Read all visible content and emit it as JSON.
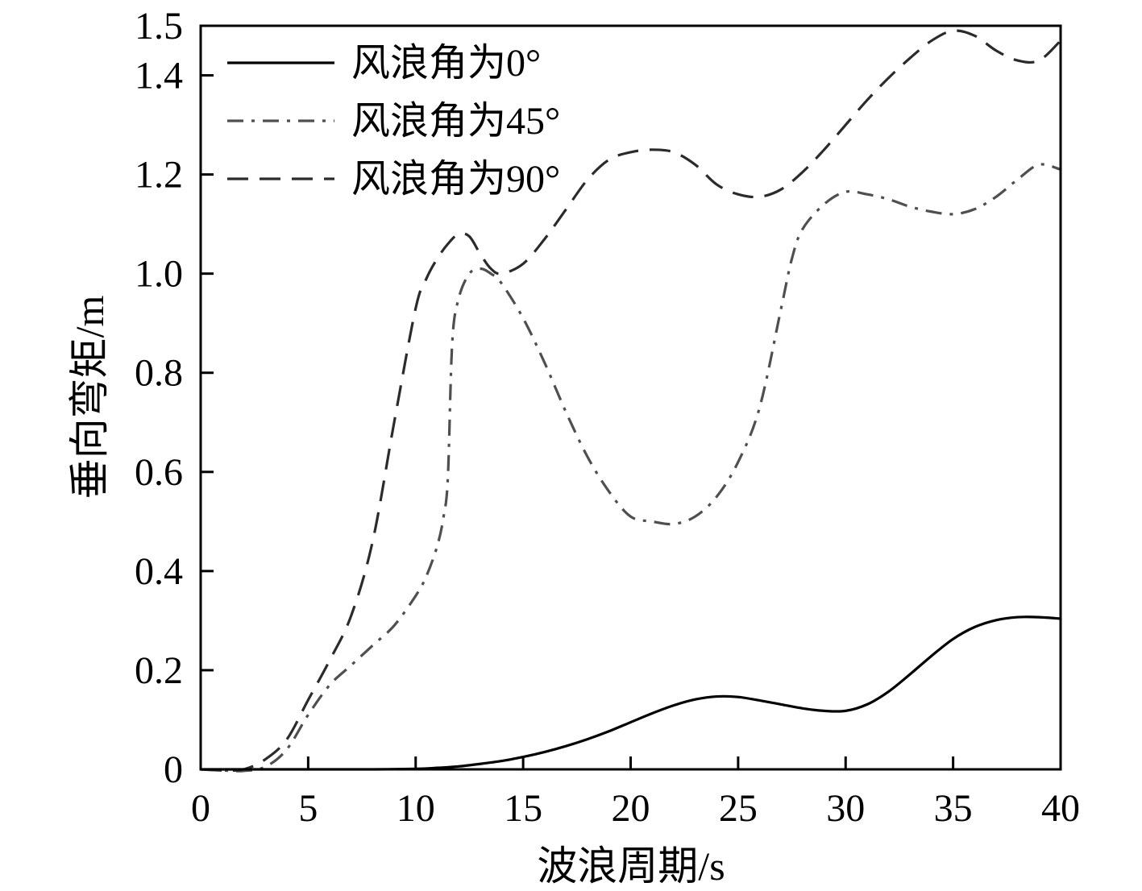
{
  "chart_data": {
    "type": "line",
    "xlabel": "波浪周期/s",
    "ylabel": "垂向弯矩/m",
    "xlim": [
      0,
      40
    ],
    "ylim": [
      0,
      1.5
    ],
    "x_ticks": [
      0,
      5,
      10,
      15,
      20,
      25,
      30,
      35,
      40
    ],
    "x_tick_labels": [
      "0",
      "5",
      "10",
      "15",
      "20",
      "25",
      "30",
      "35",
      "40"
    ],
    "y_ticks": [
      0,
      0.2,
      0.4,
      0.6,
      0.8,
      1.0,
      1.2,
      1.4,
      1.5
    ],
    "y_tick_labels": [
      "0",
      "0.2",
      "0.4",
      "0.6",
      "0.8",
      "1.0",
      "1.2",
      "1.4",
      "1.5"
    ],
    "grid": false,
    "legend_position": "top-left",
    "series": [
      {
        "name": "风浪角为0°",
        "color": "#000000",
        "dash": "solid",
        "x": [
          0,
          2,
          4,
          6,
          8,
          10,
          11,
          12,
          13,
          14,
          15,
          16,
          17,
          18,
          19,
          20,
          21,
          22,
          23,
          24,
          25,
          26,
          27,
          28,
          29,
          30,
          31,
          32,
          33,
          34,
          35,
          36,
          37,
          38,
          39,
          40
        ],
        "y": [
          0,
          0,
          0,
          0,
          0,
          0.001,
          0.003,
          0.006,
          0.011,
          0.017,
          0.025,
          0.035,
          0.047,
          0.061,
          0.077,
          0.095,
          0.113,
          0.129,
          0.141,
          0.147,
          0.146,
          0.139,
          0.131,
          0.123,
          0.118,
          0.118,
          0.131,
          0.157,
          0.192,
          0.229,
          0.263,
          0.287,
          0.301,
          0.307,
          0.307,
          0.304
        ]
      },
      {
        "name": "风浪角为45°",
        "color": "#4f4f4f",
        "dash": "dashdot",
        "x": [
          0,
          1,
          2,
          3,
          4,
          5,
          6,
          7,
          8,
          9,
          10,
          10.5,
          11,
          11.3,
          11.5,
          11.7,
          12,
          12.5,
          13,
          13.5,
          14,
          15,
          16,
          17,
          18,
          19,
          20,
          21,
          22,
          23,
          24,
          25,
          26,
          27,
          27.5,
          28,
          29,
          30,
          31,
          32,
          33,
          34,
          35,
          36,
          37,
          38,
          39,
          40
        ],
        "y": [
          0,
          -0.002,
          -0.003,
          0.005,
          0.04,
          0.11,
          0.17,
          0.21,
          0.25,
          0.29,
          0.35,
          0.39,
          0.45,
          0.51,
          0.59,
          0.86,
          0.95,
          1.0,
          1.01,
          1.0,
          0.98,
          0.91,
          0.82,
          0.72,
          0.63,
          0.56,
          0.51,
          0.5,
          0.495,
          0.51,
          0.55,
          0.62,
          0.73,
          0.93,
          1.03,
          1.09,
          1.14,
          1.165,
          1.16,
          1.15,
          1.135,
          1.125,
          1.12,
          1.13,
          1.155,
          1.19,
          1.22,
          1.21
        ]
      },
      {
        "name": "风浪角为90°",
        "color": "#2b2b2b",
        "dash": "dashed",
        "x": [
          0,
          1,
          2,
          3,
          4,
          5,
          6,
          7,
          8,
          9,
          10,
          10.5,
          11,
          11.5,
          12,
          12.5,
          13,
          13.5,
          14,
          15,
          16,
          17,
          18,
          19,
          20,
          21,
          22,
          23,
          24,
          25,
          26,
          27,
          28,
          29,
          30,
          31,
          32,
          33,
          34,
          35,
          36,
          37,
          38,
          39,
          40
        ],
        "y": [
          0,
          -0.002,
          0,
          0.02,
          0.06,
          0.14,
          0.22,
          0.31,
          0.46,
          0.7,
          0.93,
          0.99,
          1.03,
          1.06,
          1.08,
          1.075,
          1.04,
          1.01,
          1.0,
          1.02,
          1.07,
          1.13,
          1.19,
          1.23,
          1.245,
          1.25,
          1.245,
          1.22,
          1.18,
          1.16,
          1.155,
          1.17,
          1.205,
          1.25,
          1.3,
          1.35,
          1.395,
          1.435,
          1.47,
          1.49,
          1.48,
          1.45,
          1.43,
          1.43,
          1.47
        ]
      }
    ]
  }
}
